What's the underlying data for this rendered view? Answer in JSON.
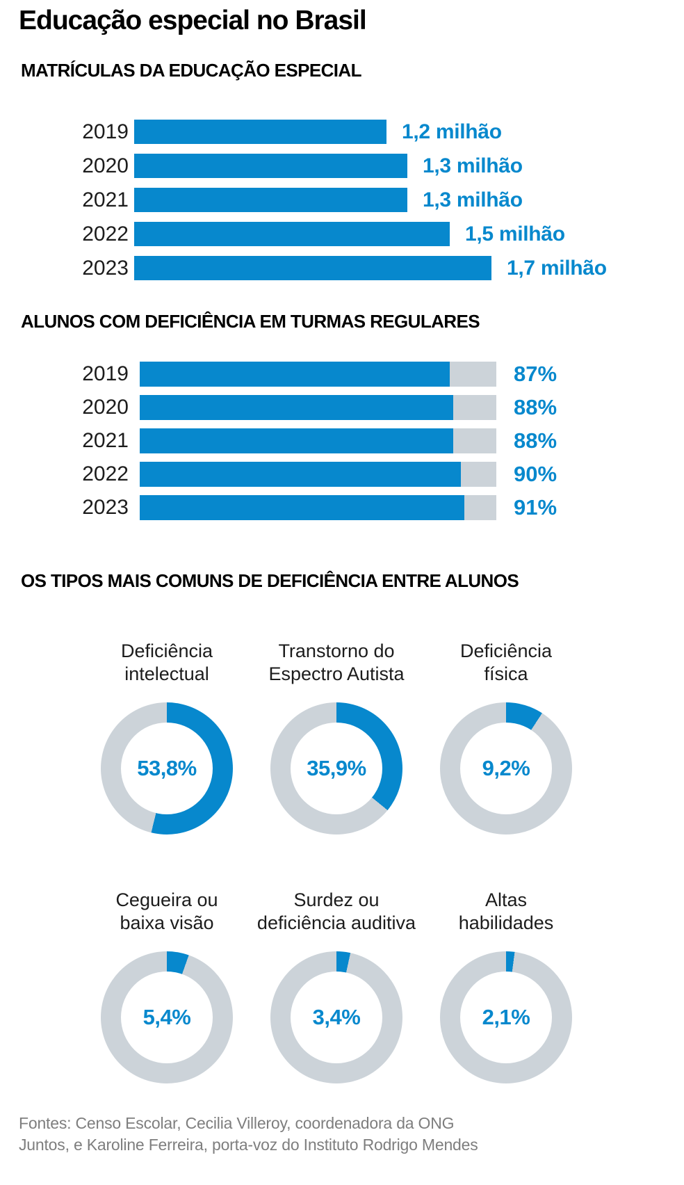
{
  "page": {
    "title": "Educação especial no Brasil",
    "colors": {
      "accent_blue": "#0788cd",
      "track_gray": "#ccd3d9",
      "title_black": "#000000",
      "label_dark": "#1c1c1c",
      "footer_gray": "#7e7e7e",
      "background": "#ffffff"
    },
    "footer": {
      "lines": [
        "Fontes: Censo Escolar, Cecilia Villeroy, coordenadora da ONG",
        "Juntos, e Karoline Ferreira, porta-voz do Instituto Rodrigo Mendes"
      ]
    }
  },
  "chart_data": [
    {
      "type": "bar",
      "orientation": "horizontal",
      "title": "MATRÍCULAS DA EDUCAÇÃO ESPECIAL",
      "categories": [
        "2019",
        "2020",
        "2021",
        "2022",
        "2023"
      ],
      "values": [
        1.2,
        1.3,
        1.3,
        1.5,
        1.7
      ],
      "value_labels": [
        "1,2 milhão",
        "1,3 milhão",
        "1,3 milhão",
        "1,5 milhão",
        "1,7 milhão"
      ],
      "unit": "milhões de matrículas",
      "xlim": [
        0,
        1.7
      ],
      "grid": false,
      "legend": false
    },
    {
      "type": "bar",
      "orientation": "horizontal",
      "title": "ALUNOS COM DEFICIÊNCIA EM TURMAS REGULARES",
      "categories": [
        "2019",
        "2020",
        "2021",
        "2022",
        "2023"
      ],
      "values": [
        87,
        88,
        88,
        90,
        91
      ],
      "value_labels": [
        "87%",
        "88%",
        "88%",
        "90%",
        "91%"
      ],
      "unit": "percent",
      "xlim": [
        0,
        100
      ],
      "track_background": true,
      "grid": false,
      "legend": false
    },
    {
      "type": "pie",
      "style": "donut",
      "title": "OS TIPOS MAIS COMUNS DE DEFICIÊNCIA ENTRE ALUNOS",
      "slices": [
        {
          "label_lines": [
            "Deficiência",
            "intelectual"
          ],
          "value": 53.8,
          "value_label": "53,8%"
        },
        {
          "label_lines": [
            "Transtorno do",
            "Espectro Autista"
          ],
          "value": 35.9,
          "value_label": "35,9%"
        },
        {
          "label_lines": [
            "Deficiência",
            "física"
          ],
          "value": 9.2,
          "value_label": "9,2%"
        },
        {
          "label_lines": [
            "Cegueira ou",
            "baixa visão"
          ],
          "value": 5.4,
          "value_label": "5,4%"
        },
        {
          "label_lines": [
            "Surdez ou",
            "deficiência auditiva"
          ],
          "value": 3.4,
          "value_label": "3,4%"
        },
        {
          "label_lines": [
            "Altas",
            "habilidades"
          ],
          "value": 2.1,
          "value_label": "2,1%"
        }
      ]
    }
  ]
}
